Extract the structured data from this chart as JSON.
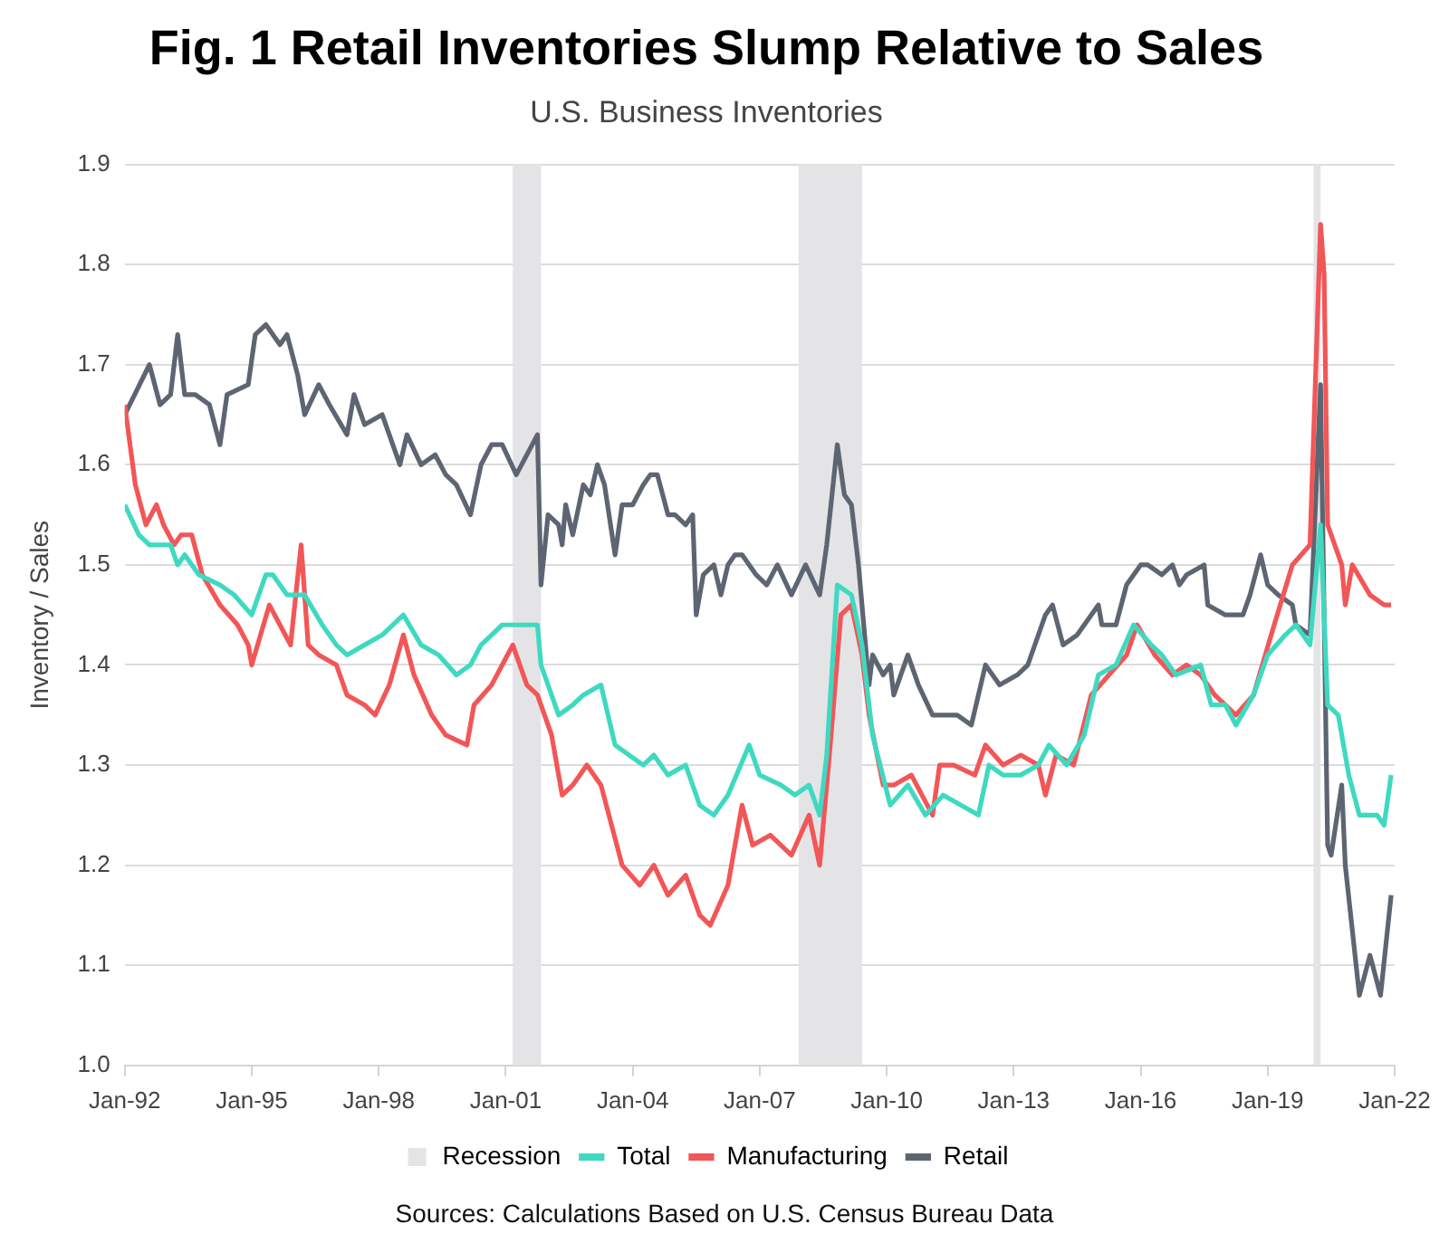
{
  "chart_data": {
    "type": "line",
    "title": "Fig. 1 Retail Inventories Slump Relative to Sales",
    "subtitle": "U.S. Business Inventories",
    "ylabel": "Inventory / Sales",
    "annotations": [
      "Sources: Calculations Based on U.S. Census Bureau Data"
    ],
    "xlim": [
      "1992-01",
      "2022-01"
    ],
    "xticks": [
      {
        "value": "1992-01",
        "label": "Jan-92"
      },
      {
        "value": "1995-01",
        "label": "Jan-95"
      },
      {
        "value": "1998-01",
        "label": "Jan-98"
      },
      {
        "value": "2001-01",
        "label": "Jan-01"
      },
      {
        "value": "2004-01",
        "label": "Jan-04"
      },
      {
        "value": "2007-01",
        "label": "Jan-07"
      },
      {
        "value": "2010-01",
        "label": "Jan-10"
      },
      {
        "value": "2013-01",
        "label": "Jan-13"
      },
      {
        "value": "2016-01",
        "label": "Jan-16"
      },
      {
        "value": "2019-01",
        "label": "Jan-19"
      },
      {
        "value": "2022-01",
        "label": "Jan-22"
      }
    ],
    "ylim": [
      1.0,
      1.9
    ],
    "yticks": [
      {
        "value": 1.0,
        "label": "1.0"
      },
      1.1,
      1.2,
      1.3,
      1.4,
      1.5,
      1.6,
      1.7,
      1.8,
      1.9
    ],
    "grid": "y",
    "legend": "bottom",
    "bands": [
      {
        "axis": "x",
        "from": "2001-03",
        "to": "2001-11",
        "label": "Recession",
        "color": "#e4e4e6"
      },
      {
        "axis": "x",
        "from": "2007-12",
        "to": "2009-06",
        "color": "#e4e4e6"
      },
      {
        "axis": "x",
        "from": "2020-02",
        "to": "2020-04",
        "color": "#e4e4e6"
      }
    ],
    "series": [
      {
        "name": "Total",
        "color": "#3fd9c1",
        "x": [
          "1992-01",
          "1992-05",
          "1992-08",
          "1993-02",
          "1993-04",
          "1993-06",
          "1993-10",
          "1994-04",
          "1994-08",
          "1995-01",
          "1995-05",
          "1995-07",
          "1995-11",
          "1996-04",
          "1996-09",
          "1997-01",
          "1997-04",
          "1997-09",
          "1998-02",
          "1998-08",
          "1999-01",
          "1999-06",
          "1999-11",
          "2000-03",
          "2000-06",
          "2000-09",
          "2000-12",
          "2001-04",
          "2001-10",
          "2001-11",
          "2002-04",
          "2002-08",
          "2002-11",
          "2003-04",
          "2003-08",
          "2003-12",
          "2004-04",
          "2004-07",
          "2004-11",
          "2005-04",
          "2005-08",
          "2005-12",
          "2006-04",
          "2006-10",
          "2007-01",
          "2007-07",
          "2007-11",
          "2008-03",
          "2008-06",
          "2008-08",
          "2008-11",
          "2009-03",
          "2009-06",
          "2009-09",
          "2010-02",
          "2010-07",
          "2010-12",
          "2011-05",
          "2011-10",
          "2012-03",
          "2012-06",
          "2012-10",
          "2013-03",
          "2013-08",
          "2013-11",
          "2014-04",
          "2014-09",
          "2015-01",
          "2015-06",
          "2015-11",
          "2016-04",
          "2016-07",
          "2016-11",
          "2017-06",
          "2017-09",
          "2018-01",
          "2018-04",
          "2018-09",
          "2019-01",
          "2019-06",
          "2019-09",
          "2020-01",
          "2020-04",
          "2020-06",
          "2020-09",
          "2020-12",
          "2021-03",
          "2021-08",
          "2021-10",
          "2021-12"
        ],
        "values": [
          1.56,
          1.53,
          1.52,
          1.52,
          1.5,
          1.51,
          1.49,
          1.48,
          1.47,
          1.45,
          1.49,
          1.49,
          1.47,
          1.47,
          1.44,
          1.42,
          1.41,
          1.42,
          1.43,
          1.45,
          1.42,
          1.41,
          1.39,
          1.4,
          1.42,
          1.43,
          1.44,
          1.44,
          1.44,
          1.4,
          1.35,
          1.36,
          1.37,
          1.38,
          1.32,
          1.31,
          1.3,
          1.31,
          1.29,
          1.3,
          1.26,
          1.25,
          1.27,
          1.32,
          1.29,
          1.28,
          1.27,
          1.28,
          1.25,
          1.31,
          1.48,
          1.47,
          1.42,
          1.33,
          1.26,
          1.28,
          1.25,
          1.27,
          1.26,
          1.25,
          1.3,
          1.29,
          1.29,
          1.3,
          1.32,
          1.3,
          1.33,
          1.39,
          1.4,
          1.44,
          1.42,
          1.41,
          1.39,
          1.4,
          1.36,
          1.36,
          1.34,
          1.37,
          1.41,
          1.43,
          1.44,
          1.42,
          1.54,
          1.36,
          1.35,
          1.29,
          1.25,
          1.25,
          1.24,
          1.29
        ]
      },
      {
        "name": "Manufacturing",
        "color": "#f25657",
        "x": [
          "1992-01",
          "1992-04",
          "1992-07",
          "1992-10",
          "1992-12",
          "1993-03",
          "1993-05",
          "1993-08",
          "1993-11",
          "1994-04",
          "1994-09",
          "1994-12",
          "1995-01",
          "1995-06",
          "1995-09",
          "1995-12",
          "1996-03",
          "1996-05",
          "1996-08",
          "1997-01",
          "1997-04",
          "1997-09",
          "1997-12",
          "1998-04",
          "1998-08",
          "1998-11",
          "1999-04",
          "1999-08",
          "2000-02",
          "2000-04",
          "2000-09",
          "2000-12",
          "2001-03",
          "2001-07",
          "2001-10",
          "2002-02",
          "2002-05",
          "2002-08",
          "2002-12",
          "2003-04",
          "2003-07",
          "2003-10",
          "2004-03",
          "2004-07",
          "2004-11",
          "2005-04",
          "2005-08",
          "2005-11",
          "2006-04",
          "2006-08",
          "2006-11",
          "2007-04",
          "2007-10",
          "2008-03",
          "2008-06",
          "2008-09",
          "2008-12",
          "2009-03",
          "2009-06",
          "2009-08",
          "2009-12",
          "2010-03",
          "2010-08",
          "2011-02",
          "2011-04",
          "2011-08",
          "2012-02",
          "2012-05",
          "2012-10",
          "2013-03",
          "2013-08",
          "2013-10",
          "2014-01",
          "2014-06",
          "2014-11",
          "2015-04",
          "2015-09",
          "2015-12",
          "2016-05",
          "2016-10",
          "2017-02",
          "2017-06",
          "2017-10",
          "2018-04",
          "2018-09",
          "2019-02",
          "2019-08",
          "2020-01",
          "2020-04",
          "2020-05",
          "2020-06",
          "2020-10",
          "2020-11",
          "2021-01",
          "2021-06",
          "2021-10",
          "2021-12"
        ],
        "values": [
          1.66,
          1.58,
          1.54,
          1.56,
          1.54,
          1.52,
          1.53,
          1.53,
          1.49,
          1.46,
          1.44,
          1.42,
          1.4,
          1.46,
          1.44,
          1.42,
          1.52,
          1.42,
          1.41,
          1.4,
          1.37,
          1.36,
          1.35,
          1.38,
          1.43,
          1.39,
          1.35,
          1.33,
          1.32,
          1.36,
          1.38,
          1.4,
          1.42,
          1.38,
          1.37,
          1.33,
          1.27,
          1.28,
          1.3,
          1.28,
          1.24,
          1.2,
          1.18,
          1.2,
          1.17,
          1.19,
          1.15,
          1.14,
          1.18,
          1.26,
          1.22,
          1.23,
          1.21,
          1.25,
          1.2,
          1.32,
          1.45,
          1.46,
          1.41,
          1.35,
          1.28,
          1.28,
          1.29,
          1.25,
          1.3,
          1.3,
          1.29,
          1.32,
          1.3,
          1.31,
          1.3,
          1.27,
          1.31,
          1.3,
          1.37,
          1.39,
          1.41,
          1.44,
          1.41,
          1.39,
          1.4,
          1.39,
          1.37,
          1.35,
          1.37,
          1.43,
          1.5,
          1.52,
          1.84,
          1.79,
          1.54,
          1.5,
          1.46,
          1.5,
          1.47,
          1.46,
          1.46
        ]
      },
      {
        "name": "Retail",
        "color": "#5e6572",
        "x": [
          "1992-01",
          "1992-08",
          "1992-11",
          "1993-02",
          "1993-04",
          "1993-06",
          "1993-09",
          "1994-01",
          "1994-04",
          "1994-06",
          "1994-12",
          "1995-02",
          "1995-05",
          "1995-09",
          "1995-11",
          "1996-02",
          "1996-04",
          "1996-08",
          "1996-11",
          "1997-04",
          "1997-06",
          "1997-09",
          "1998-02",
          "1998-07",
          "1998-09",
          "1999-01",
          "1999-05",
          "1999-08",
          "1999-11",
          "2000-03",
          "2000-06",
          "2000-09",
          "2000-12",
          "2001-04",
          "2001-10",
          "2001-11",
          "2002-01",
          "2002-04",
          "2002-05",
          "2002-06",
          "2002-08",
          "2002-11",
          "2003-01",
          "2003-03",
          "2003-05",
          "2003-08",
          "2003-10",
          "2004-01",
          "2004-04",
          "2004-06",
          "2004-08",
          "2004-11",
          "2005-01",
          "2005-04",
          "2005-06",
          "2005-07",
          "2005-09",
          "2005-12",
          "2006-02",
          "2006-04",
          "2006-06",
          "2006-08",
          "2006-12",
          "2007-03",
          "2007-06",
          "2007-10",
          "2008-02",
          "2008-06",
          "2008-08",
          "2008-11",
          "2009-01",
          "2009-03",
          "2009-05",
          "2009-08",
          "2009-09",
          "2009-12",
          "2010-02",
          "2010-03",
          "2010-07",
          "2010-10",
          "2011-02",
          "2011-05",
          "2011-09",
          "2012-01",
          "2012-05",
          "2012-09",
          "2013-02",
          "2013-05",
          "2013-10",
          "2013-12",
          "2014-03",
          "2014-07",
          "2015-01",
          "2015-02",
          "2015-06",
          "2015-09",
          "2016-01",
          "2016-03",
          "2016-07",
          "2016-10",
          "2016-12",
          "2017-02",
          "2017-07",
          "2017-08",
          "2018-01",
          "2018-06",
          "2018-08",
          "2018-11",
          "2019-01",
          "2019-04",
          "2019-08",
          "2019-09",
          "2020-01",
          "2020-04",
          "2020-06",
          "2020-07",
          "2020-10",
          "2020-11",
          "2021-03",
          "2021-06",
          "2021-09",
          "2021-12"
        ],
        "values": [
          1.65,
          1.7,
          1.66,
          1.67,
          1.73,
          1.67,
          1.67,
          1.66,
          1.62,
          1.67,
          1.68,
          1.73,
          1.74,
          1.72,
          1.73,
          1.69,
          1.65,
          1.68,
          1.66,
          1.63,
          1.67,
          1.64,
          1.65,
          1.6,
          1.63,
          1.6,
          1.61,
          1.59,
          1.58,
          1.55,
          1.6,
          1.62,
          1.62,
          1.59,
          1.63,
          1.48,
          1.55,
          1.54,
          1.52,
          1.56,
          1.53,
          1.58,
          1.57,
          1.6,
          1.58,
          1.51,
          1.56,
          1.56,
          1.58,
          1.59,
          1.59,
          1.55,
          1.55,
          1.54,
          1.55,
          1.45,
          1.49,
          1.5,
          1.47,
          1.5,
          1.51,
          1.51,
          1.49,
          1.48,
          1.5,
          1.47,
          1.5,
          1.47,
          1.52,
          1.62,
          1.57,
          1.56,
          1.5,
          1.38,
          1.41,
          1.39,
          1.4,
          1.37,
          1.41,
          1.38,
          1.35,
          1.35,
          1.35,
          1.34,
          1.4,
          1.38,
          1.39,
          1.4,
          1.45,
          1.46,
          1.42,
          1.43,
          1.46,
          1.44,
          1.44,
          1.48,
          1.5,
          1.5,
          1.49,
          1.5,
          1.48,
          1.49,
          1.5,
          1.46,
          1.45,
          1.45,
          1.47,
          1.51,
          1.48,
          1.47,
          1.46,
          1.44,
          1.43,
          1.68,
          1.22,
          1.21,
          1.28,
          1.2,
          1.07,
          1.11,
          1.07,
          1.17
        ]
      }
    ]
  }
}
